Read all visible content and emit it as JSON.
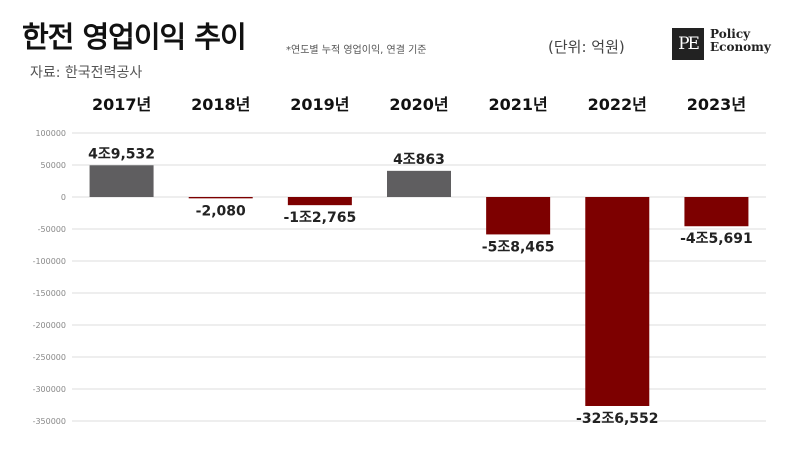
{
  "header": {
    "title": "한전 영업이익 추이",
    "subtitle": "*연도별 누적 영업이익, 연결 기준",
    "source": "자료: 한국전력공사",
    "unit": "(단위: 억원)"
  },
  "logo": {
    "mark": "PE",
    "line1": "Policy",
    "line2": "Economy"
  },
  "colors": {
    "positive": "#5f5e60",
    "negative": "#7d0000",
    "grid": "#dddddd"
  },
  "chart_data": {
    "type": "bar",
    "categories": [
      "2017년",
      "2018년",
      "2019년",
      "2020년",
      "2021년",
      "2022년",
      "2023년"
    ],
    "values": [
      49532,
      -2080,
      -12765,
      40863,
      -58465,
      -326552,
      -45691
    ],
    "data_labels": [
      "4조9,532",
      "-2,080",
      "-1조2,765",
      "4조863",
      "-5조8,465",
      "-32조6,552",
      "-4조5,691"
    ],
    "yticks": [
      "100000",
      "50000",
      "0",
      "-50000",
      "-100000",
      "-150000",
      "-200000",
      "-250000",
      "-300000",
      "-350000"
    ],
    "ylim": [
      -350000,
      100000
    ],
    "grid": true
  }
}
